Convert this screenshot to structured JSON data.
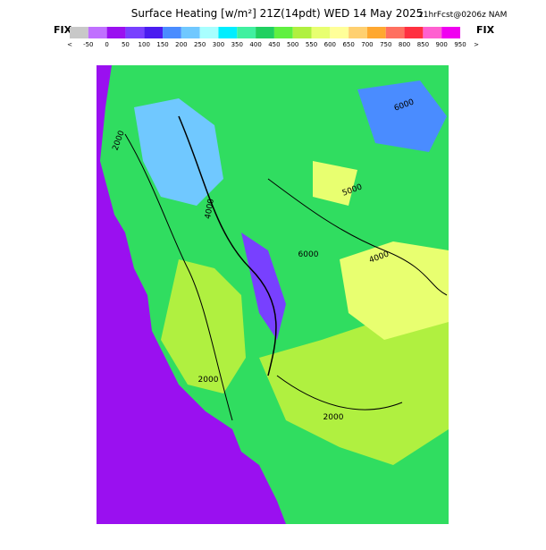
{
  "header": {
    "title": "Surface Heating [w/m²] 21Z(14pdt) WED 14 May 2025",
    "subtitle": "21hrFcst@0206z NAM",
    "fix_left": "FIX",
    "fix_right": "FIX"
  },
  "colorbar": {
    "under_label": "<",
    "over_label": ">",
    "labels": [
      "-50",
      "0",
      "50",
      "100",
      "150",
      "200",
      "250",
      "300",
      "350",
      "400",
      "450",
      "500",
      "550",
      "600",
      "650",
      "700",
      "750",
      "800",
      "850",
      "900",
      "950"
    ],
    "colors": [
      "#c8c8c8",
      "#c070ff",
      "#9a10f0",
      "#7840ff",
      "#4a1cf0",
      "#4a8cff",
      "#70c8ff",
      "#a8ffff",
      "#00eeff",
      "#40f0a0",
      "#20d060",
      "#60f040",
      "#b0f040",
      "#e8ff70",
      "#ffff99",
      "#ffd070",
      "#ffa830",
      "#ff7060",
      "#ff3040",
      "#ff60d0",
      "#f000f0"
    ]
  },
  "map": {
    "contour_labels": [
      "2000",
      "6000",
      "5000",
      "6000",
      "4000",
      "2000",
      "2000",
      "4000"
    ]
  }
}
